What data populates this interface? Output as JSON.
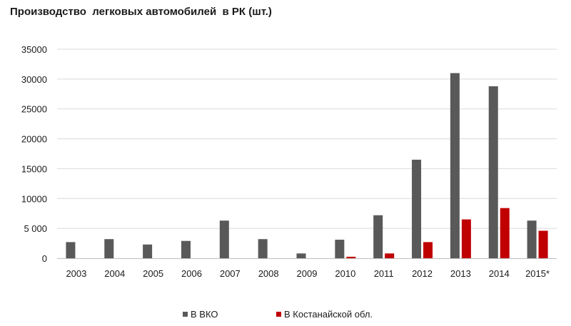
{
  "chart_data": {
    "type": "bar",
    "title": "Производство  легковых автомобилей  в РК (шт.)",
    "xlabel": "",
    "ylabel": "",
    "categories": [
      "2003",
      "2004",
      "2005",
      "2006",
      "2007",
      "2008",
      "2009",
      "2010",
      "2011",
      "2012",
      "2013",
      "2014",
      "2015*"
    ],
    "series": [
      {
        "name": "В ВКО",
        "color": "#595959",
        "values": [
          2700,
          3200,
          2300,
          2900,
          6300,
          3200,
          800,
          3100,
          7200,
          16500,
          31000,
          28800,
          6300
        ]
      },
      {
        "name": "В Костанайской обл.",
        "color": "#c00000",
        "values": [
          0,
          0,
          0,
          0,
          0,
          0,
          0,
          250,
          800,
          2700,
          6500,
          8400,
          4600
        ]
      }
    ],
    "ylim": [
      0,
      35000
    ],
    "yticks": [
      0,
      5000,
      10000,
      15000,
      20000,
      25000,
      30000,
      35000
    ],
    "ytick_labels": [
      "0",
      "5 000",
      "10000",
      "15000",
      "20000",
      "25000",
      "30000",
      "35000"
    ],
    "grid": true,
    "legend": "bottom"
  }
}
